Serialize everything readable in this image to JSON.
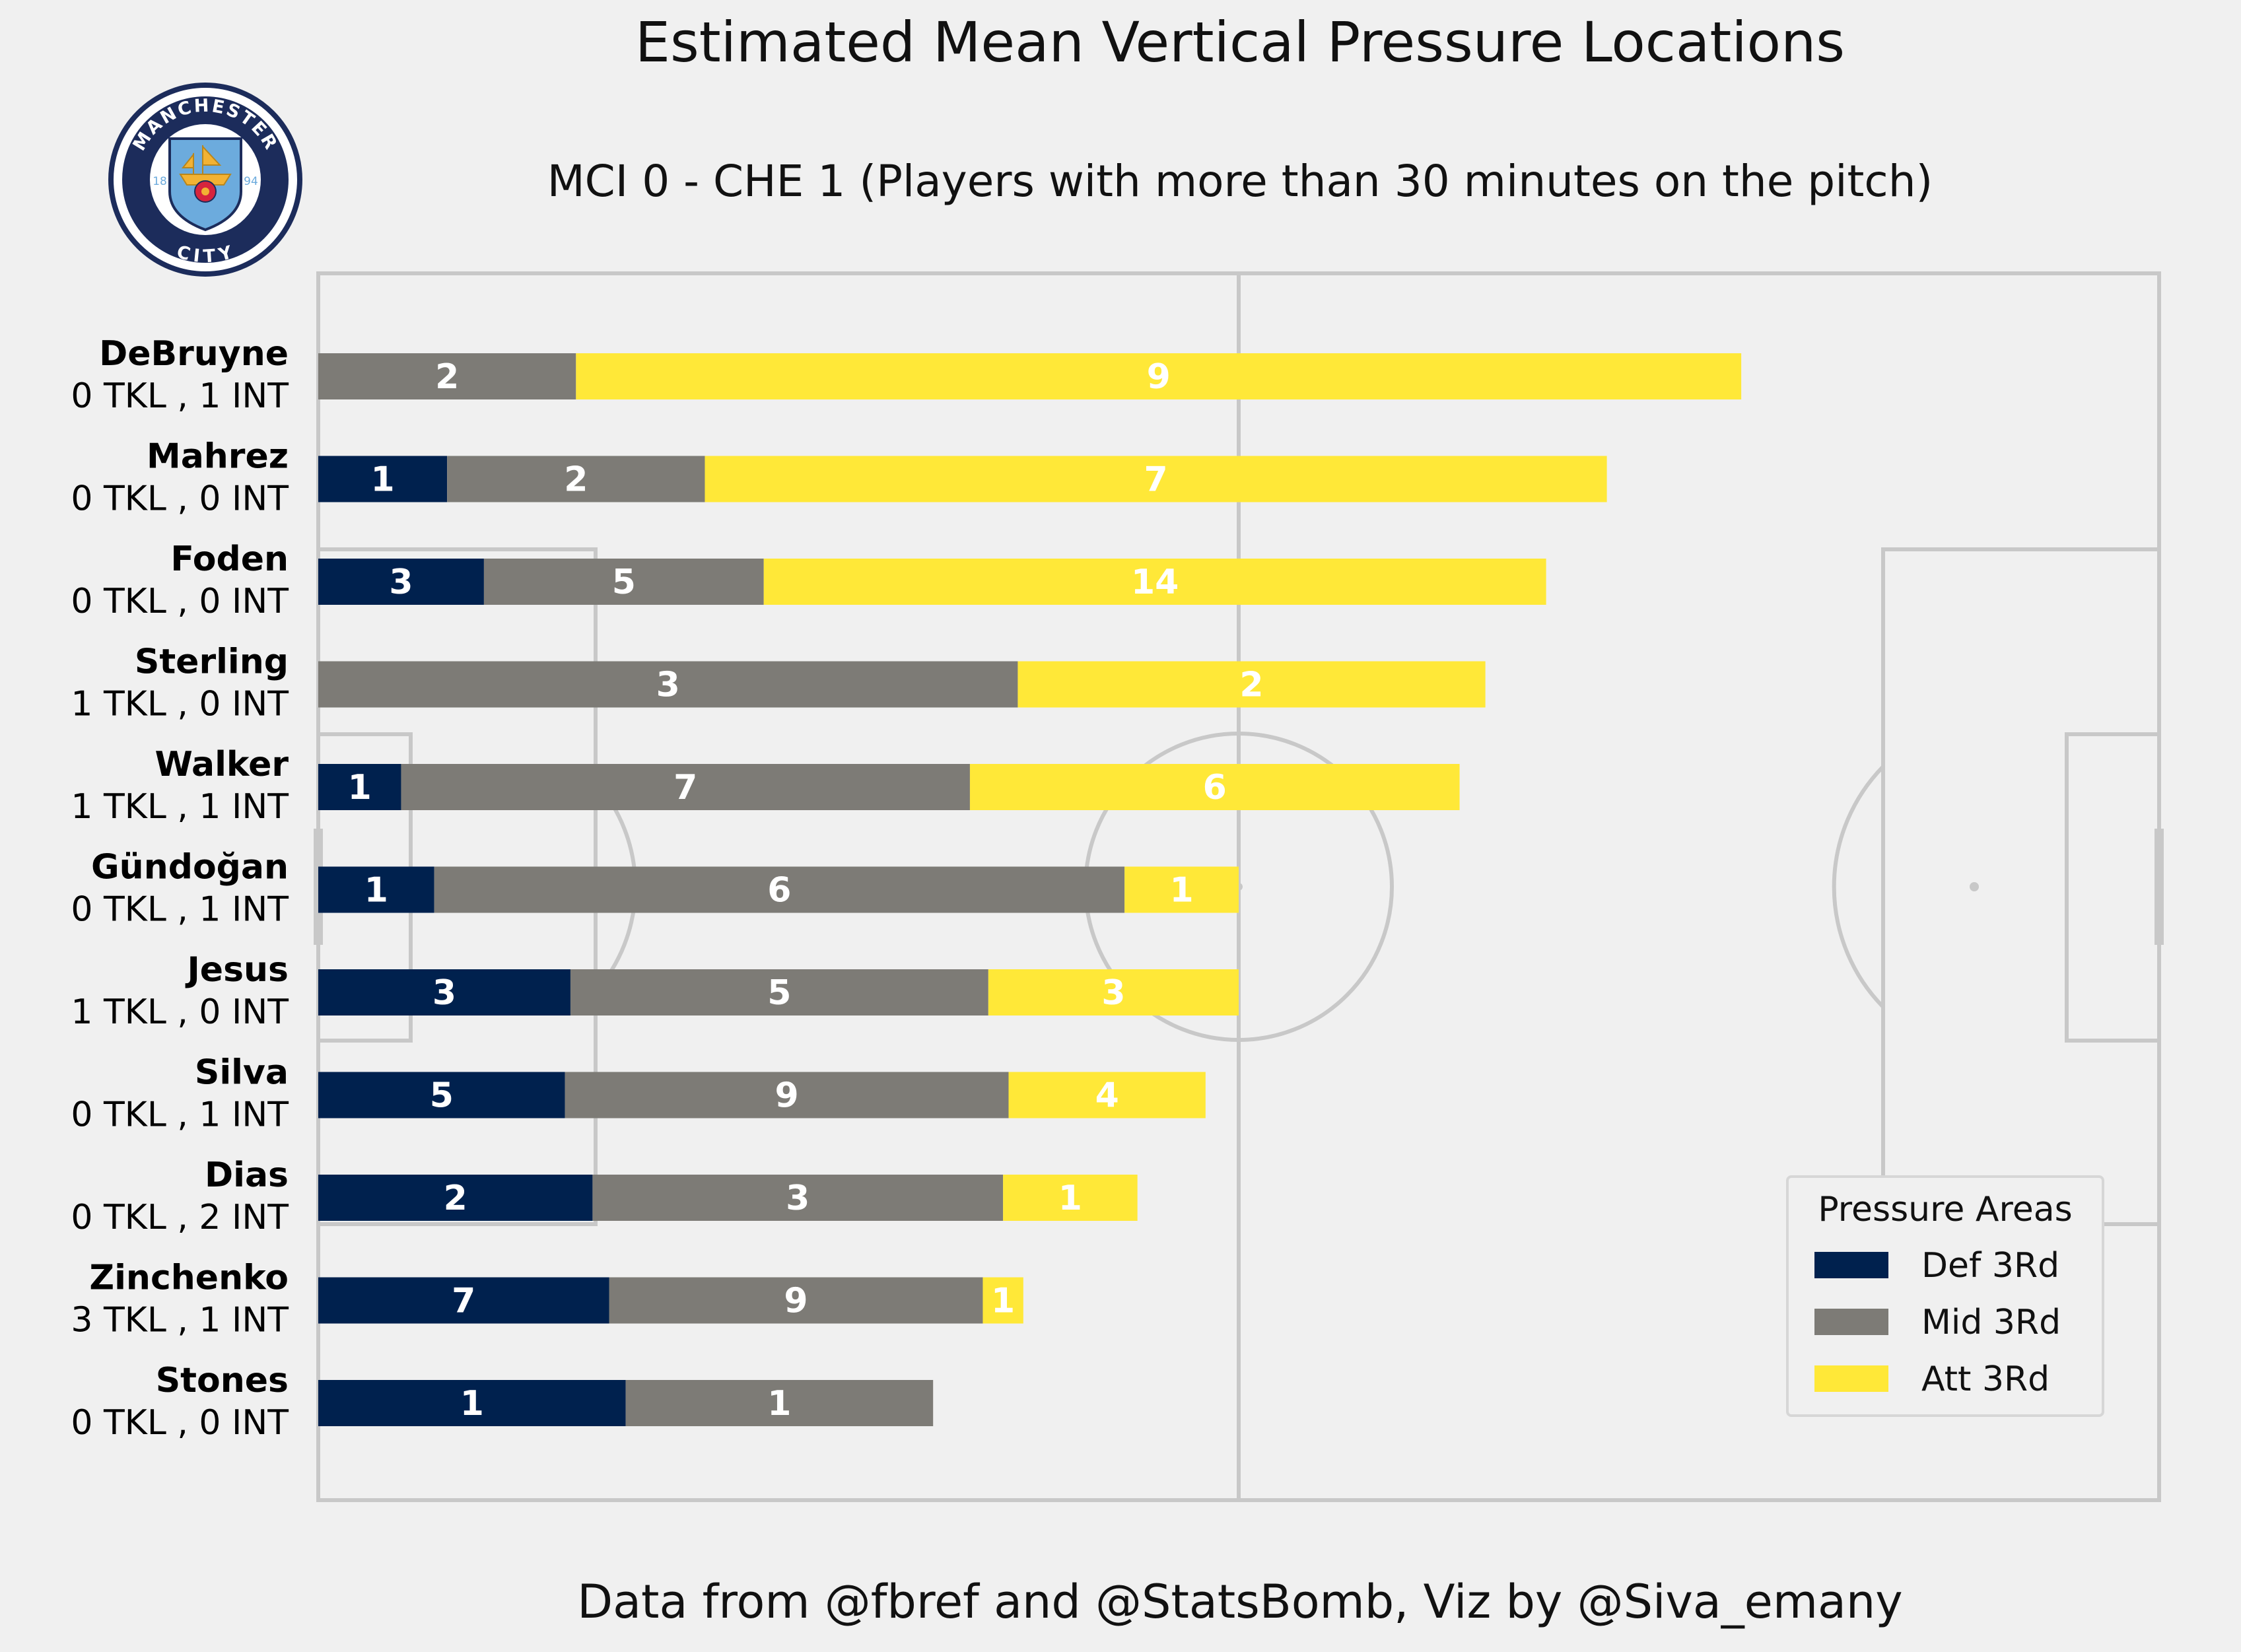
{
  "title": "Estimated Mean Vertical Pressure Locations",
  "subtitle": "MCI 0 - CHE 1 (Players with more than 30 minutes on the pitch)",
  "footer": "Data from @fbref and @StatsBomb, Viz by @Siva_emany",
  "logo": {
    "top_text": "MANCHESTER",
    "bottom_text": "CITY",
    "year_left": "18",
    "year_right": "94"
  },
  "colors": {
    "def": "#00214e",
    "mid": "#7d7b76",
    "att": "#ffe838",
    "background": "#f0f0f0",
    "pitch_lines": "#c8c8c8"
  },
  "chart_data": {
    "type": "bar",
    "orientation": "horizontal",
    "stacked": true,
    "categories": [
      "DeBruyne",
      "Mahrez",
      "Foden",
      "Sterling",
      "Walker",
      "Gündoğan",
      "Jesus",
      "Silva",
      "Dias",
      "Zinchenko",
      "Stones"
    ],
    "stats": [
      "0 TKL ,  1 INT",
      "0 TKL ,  0 INT",
      "0 TKL ,  0 INT",
      "1 TKL ,  0 INT",
      "1 TKL ,  1 INT",
      "0 TKL ,  1 INT",
      "1 TKL ,  0 INT",
      "0 TKL ,  1 INT",
      "0 TKL ,  2 INT",
      "3 TKL ,  1 INT",
      "0 TKL ,  0 INT"
    ],
    "segment_extents": [
      [
        [
          0,
          14
        ],
        [
          14,
          77.3
        ]
      ],
      [
        [
          0,
          7
        ],
        [
          7,
          21
        ],
        [
          21,
          70
        ]
      ],
      [
        [
          0,
          9
        ],
        [
          9,
          24.2
        ],
        [
          24.2,
          66.7
        ]
      ],
      [
        [
          0,
          38
        ],
        [
          38,
          63.4
        ]
      ],
      [
        [
          0,
          4.5
        ],
        [
          4.5,
          35.4
        ],
        [
          35.4,
          62
        ]
      ],
      [
        [
          0,
          6.3
        ],
        [
          6.3,
          43.8
        ],
        [
          43.8,
          50
        ]
      ],
      [
        [
          0,
          13.7
        ],
        [
          13.7,
          36.4
        ],
        [
          36.4,
          50
        ]
      ],
      [
        [
          0,
          13.4
        ],
        [
          13.4,
          37.5
        ],
        [
          37.5,
          48.2
        ]
      ],
      [
        [
          0,
          14.9
        ],
        [
          14.9,
          37.2
        ],
        [
          37.2,
          44.5
        ]
      ],
      [
        [
          0,
          15.8
        ],
        [
          15.8,
          36.1
        ],
        [
          36.1,
          38.3
        ]
      ],
      [
        [
          0,
          16.7
        ],
        [
          16.7,
          33.4
        ]
      ]
    ],
    "segment_areas": [
      [
        "mid",
        "att"
      ],
      [
        "def",
        "mid",
        "att"
      ],
      [
        "def",
        "mid",
        "att"
      ],
      [
        "mid",
        "att"
      ],
      [
        "def",
        "mid",
        "att"
      ],
      [
        "def",
        "mid",
        "att"
      ],
      [
        "def",
        "mid",
        "att"
      ],
      [
        "def",
        "mid",
        "att"
      ],
      [
        "def",
        "mid",
        "att"
      ],
      [
        "def",
        "mid",
        "att"
      ],
      [
        "def",
        "mid"
      ]
    ],
    "segment_counts": [
      [
        "2",
        "9"
      ],
      [
        "1",
        "2",
        "7"
      ],
      [
        "3",
        "5",
        "14"
      ],
      [
        "3",
        "2"
      ],
      [
        "1",
        "7",
        "6"
      ],
      [
        "1",
        "6",
        "1"
      ],
      [
        "3",
        "5",
        "3"
      ],
      [
        "5",
        "9",
        "4"
      ],
      [
        "2",
        "3",
        "1"
      ],
      [
        "7",
        "9",
        "1"
      ],
      [
        "1",
        "1"
      ]
    ],
    "xlim": [
      0,
      100
    ],
    "legend": {
      "title": "Pressure Areas",
      "position": "lower-right",
      "entries": [
        {
          "key": "def",
          "label": "Def 3Rd"
        },
        {
          "key": "mid",
          "label": "Mid 3Rd"
        },
        {
          "key": "att",
          "label": "Att 3Rd"
        }
      ]
    },
    "grid": false
  }
}
